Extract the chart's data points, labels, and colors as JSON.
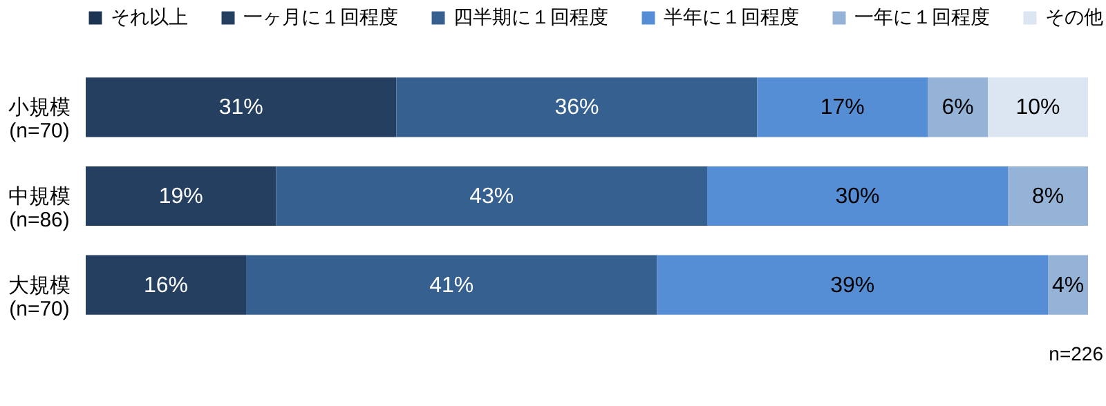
{
  "chart_data": {
    "type": "bar",
    "orientation": "horizontal",
    "stacked": true,
    "legend": "top",
    "annotations": [
      "n=226"
    ],
    "categories": [
      "小規模\n(n=70)",
      "中規模\n(n=86)",
      "大規模\n(n=70)"
    ],
    "series": [
      {
        "name": "それ以上",
        "color": "#1d3352",
        "values": [
          null,
          null,
          null
        ],
        "value_labels": [
          null,
          null,
          null
        ]
      },
      {
        "name": "一ヶ月に１回程度",
        "color": "#243f60",
        "values": [
          31,
          19,
          16
        ],
        "value_labels": [
          "31%",
          "19%",
          "16%"
        ]
      },
      {
        "name": "四半期に１回程度",
        "color": "#35608f",
        "values": [
          36,
          43,
          41
        ],
        "value_labels": [
          "36%",
          "43%",
          "41%"
        ]
      },
      {
        "name": "半年に１回程度",
        "color": "#558ed5",
        "values": [
          17,
          30,
          39
        ],
        "value_labels": [
          "17%",
          "30%",
          "39%"
        ]
      },
      {
        "name": "一年に１回程度",
        "color": "#95b3d7",
        "values": [
          6,
          8,
          4
        ],
        "value_labels": [
          "6%",
          "8%",
          "4%"
        ]
      },
      {
        "name": "その他",
        "color": "#dce6f2",
        "values": [
          10,
          null,
          null
        ],
        "value_labels": [
          "10%",
          null,
          null
        ]
      }
    ]
  }
}
